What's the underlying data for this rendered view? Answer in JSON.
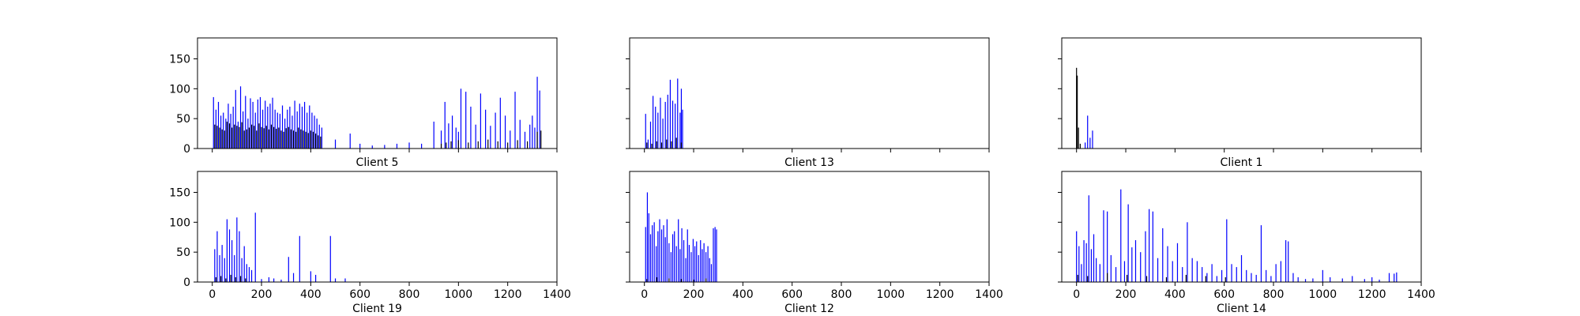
{
  "chart_data": [
    {
      "type": "bar",
      "title": "Client 5",
      "xlim": [
        -60,
        1400
      ],
      "ylim": [
        0,
        185
      ],
      "xticks": [
        0,
        200,
        400,
        600,
        800,
        1000,
        1200,
        1400
      ],
      "yticks": [
        0,
        50,
        100,
        150
      ],
      "show_xtick_labels": false,
      "show_ytick_labels": true,
      "series": [
        {
          "color": "#0000ff",
          "x": [
            5,
            15,
            25,
            35,
            45,
            55,
            65,
            75,
            85,
            95,
            105,
            115,
            125,
            135,
            145,
            155,
            165,
            175,
            185,
            195,
            205,
            215,
            225,
            235,
            245,
            255,
            265,
            275,
            285,
            295,
            305,
            315,
            325,
            335,
            345,
            355,
            365,
            375,
            385,
            395,
            405,
            415,
            425,
            435,
            445,
            500,
            560,
            600,
            650,
            700,
            750,
            800,
            850,
            900,
            930,
            945,
            960,
            975,
            990,
            1000,
            1010,
            1030,
            1050,
            1070,
            1090,
            1110,
            1130,
            1150,
            1170,
            1190,
            1210,
            1230,
            1250,
            1270,
            1290,
            1300,
            1310,
            1320,
            1330
          ],
          "y": [
            86,
            65,
            78,
            55,
            60,
            50,
            75,
            58,
            70,
            98,
            45,
            104,
            62,
            88,
            50,
            84,
            78,
            60,
            82,
            86,
            65,
            80,
            70,
            75,
            85,
            65,
            60,
            58,
            72,
            50,
            65,
            70,
            55,
            80,
            62,
            75,
            70,
            78,
            60,
            72,
            60,
            55,
            50,
            40,
            35,
            15,
            25,
            8,
            5,
            6,
            8,
            10,
            8,
            45,
            30,
            78,
            42,
            55,
            35,
            28,
            100,
            95,
            70,
            40,
            92,
            65,
            38,
            60,
            85,
            55,
            30,
            95,
            48,
            28,
            40,
            55,
            35,
            120,
            97
          ]
        },
        {
          "color": "#000000",
          "x": [
            10,
            20,
            30,
            40,
            50,
            60,
            70,
            80,
            90,
            100,
            110,
            120,
            130,
            140,
            150,
            160,
            170,
            180,
            190,
            200,
            210,
            220,
            230,
            240,
            250,
            260,
            270,
            280,
            290,
            300,
            310,
            320,
            330,
            340,
            350,
            360,
            370,
            380,
            390,
            400,
            410,
            420,
            430,
            440,
            930,
            950,
            970,
            1000,
            1040,
            1080,
            1120,
            1160,
            1200,
            1240,
            1280,
            1320,
            1335
          ],
          "y": [
            40,
            38,
            35,
            32,
            30,
            45,
            42,
            35,
            40,
            38,
            36,
            44,
            30,
            32,
            35,
            40,
            38,
            30,
            42,
            36,
            34,
            38,
            32,
            40,
            36,
            33,
            35,
            30,
            28,
            34,
            36,
            32,
            30,
            28,
            35,
            32,
            30,
            28,
            26,
            30,
            28,
            25,
            22,
            20,
            8,
            10,
            12,
            14,
            10,
            12,
            15,
            12,
            10,
            14,
            12,
            28,
            30
          ]
        }
      ]
    },
    {
      "type": "bar",
      "title": "Client 13",
      "xlim": [
        -60,
        1400
      ],
      "ylim": [
        0,
        185
      ],
      "xticks": [
        0,
        200,
        400,
        600,
        800,
        1000,
        1200,
        1400
      ],
      "yticks": [
        0,
        50,
        100,
        150
      ],
      "show_xtick_labels": false,
      "show_ytick_labels": false,
      "series": [
        {
          "color": "#0000ff",
          "x": [
            5,
            15,
            25,
            35,
            45,
            55,
            65,
            75,
            85,
            95,
            105,
            115,
            125,
            135,
            145,
            150,
            155
          ],
          "y": [
            58,
            15,
            45,
            88,
            70,
            60,
            85,
            50,
            78,
            90,
            115,
            80,
            75,
            117,
            60,
            100,
            65
          ]
        },
        {
          "color": "#000000",
          "x": [
            10,
            30,
            50,
            70,
            90,
            110,
            130,
            150
          ],
          "y": [
            10,
            8,
            12,
            10,
            15,
            12,
            18,
            10
          ]
        }
      ]
    },
    {
      "type": "bar",
      "title": "Client 1",
      "xlim": [
        -60,
        1400
      ],
      "ylim": [
        0,
        185
      ],
      "xticks": [
        0,
        200,
        400,
        600,
        800,
        1000,
        1200,
        1400
      ],
      "yticks": [
        0,
        50,
        100,
        150
      ],
      "show_xtick_labels": false,
      "show_ytick_labels": false,
      "series": [
        {
          "color": "#0000ff",
          "x": [
            35,
            45,
            55,
            65
          ],
          "y": [
            10,
            55,
            18,
            30
          ]
        },
        {
          "color": "#000000",
          "x": [
            0,
            3,
            8,
            15
          ],
          "y": [
            135,
            122,
            35,
            8
          ]
        }
      ]
    },
    {
      "type": "bar",
      "title": "Client 19",
      "xlim": [
        -60,
        1400
      ],
      "ylim": [
        0,
        185
      ],
      "xticks": [
        0,
        200,
        400,
        600,
        800,
        1000,
        1200,
        1400
      ],
      "yticks": [
        0,
        50,
        100,
        150
      ],
      "show_xtick_labels": true,
      "show_ytick_labels": true,
      "series": [
        {
          "color": "#0000ff",
          "x": [
            10,
            20,
            30,
            40,
            50,
            60,
            70,
            80,
            90,
            100,
            110,
            120,
            130,
            140,
            150,
            160,
            175,
            200,
            230,
            250,
            280,
            310,
            330,
            355,
            400,
            420,
            480,
            500,
            540
          ],
          "y": [
            55,
            85,
            45,
            62,
            40,
            105,
            88,
            70,
            45,
            108,
            85,
            40,
            60,
            30,
            25,
            20,
            116,
            5,
            8,
            6,
            4,
            42,
            15,
            77,
            18,
            12,
            77,
            6,
            6
          ]
        },
        {
          "color": "#000000",
          "x": [
            15,
            35,
            55,
            75,
            95,
            115,
            135
          ],
          "y": [
            8,
            10,
            6,
            12,
            8,
            10,
            6
          ]
        }
      ]
    },
    {
      "type": "bar",
      "title": "Client 12",
      "xlim": [
        -60,
        1400
      ],
      "ylim": [
        0,
        185
      ],
      "xticks": [
        0,
        200,
        400,
        600,
        800,
        1000,
        1200,
        1400
      ],
      "yticks": [
        0,
        50,
        100,
        150
      ],
      "show_xtick_labels": true,
      "show_ytick_labels": false,
      "series": [
        {
          "color": "#0000ff",
          "x": [
            5,
            12,
            18,
            25,
            32,
            40,
            48,
            55,
            62,
            70,
            78,
            85,
            92,
            100,
            108,
            115,
            122,
            130,
            138,
            145,
            152,
            160,
            168,
            175,
            182,
            190,
            198,
            205,
            212,
            220,
            228,
            235,
            242,
            250,
            258,
            265,
            272,
            280,
            287,
            293
          ],
          "y": [
            92,
            150,
            115,
            80,
            95,
            100,
            60,
            85,
            105,
            88,
            95,
            75,
            105,
            65,
            50,
            80,
            85,
            60,
            105,
            55,
            90,
            70,
            40,
            88,
            62,
            50,
            72,
            60,
            68,
            45,
            70,
            55,
            65,
            50,
            60,
            40,
            30,
            90,
            92,
            88
          ]
        },
        {
          "color": "#000000",
          "x": [
            10,
            50,
            100,
            150,
            200,
            250
          ],
          "y": [
            5,
            8,
            6,
            5,
            4,
            6
          ]
        }
      ]
    },
    {
      "type": "bar",
      "title": "Client 14",
      "xlim": [
        -60,
        1400
      ],
      "ylim": [
        0,
        185
      ],
      "xticks": [
        0,
        200,
        400,
        600,
        800,
        1000,
        1200,
        1400
      ],
      "yticks": [
        0,
        50,
        100,
        150
      ],
      "show_xtick_labels": true,
      "show_ytick_labels": false,
      "series": [
        {
          "color": "#0000ff",
          "x": [
            0,
            10,
            20,
            30,
            40,
            50,
            60,
            70,
            80,
            95,
            110,
            125,
            140,
            160,
            180,
            195,
            210,
            225,
            240,
            260,
            280,
            295,
            310,
            330,
            350,
            370,
            390,
            410,
            430,
            450,
            470,
            490,
            510,
            530,
            550,
            570,
            590,
            610,
            630,
            650,
            670,
            690,
            710,
            730,
            750,
            770,
            790,
            810,
            830,
            850,
            860,
            880,
            900,
            930,
            960,
            1000,
            1030,
            1080,
            1120,
            1170,
            1200,
            1230,
            1270,
            1290,
            1300
          ],
          "y": [
            85,
            60,
            30,
            70,
            65,
            145,
            55,
            80,
            40,
            30,
            120,
            118,
            45,
            25,
            155,
            35,
            130,
            58,
            70,
            50,
            85,
            122,
            118,
            40,
            90,
            60,
            35,
            65,
            25,
            100,
            40,
            35,
            25,
            15,
            30,
            10,
            20,
            105,
            30,
            25,
            45,
            20,
            15,
            12,
            95,
            20,
            10,
            30,
            35,
            70,
            68,
            15,
            8,
            5,
            6,
            20,
            8,
            6,
            10,
            5,
            8,
            4,
            15,
            14,
            16
          ]
        },
        {
          "color": "#000000",
          "x": [
            5,
            45,
            125,
            205,
            285,
            365,
            445,
            525,
            605
          ],
          "y": [
            12,
            10,
            15,
            12,
            10,
            8,
            12,
            10,
            8
          ]
        }
      ]
    }
  ]
}
